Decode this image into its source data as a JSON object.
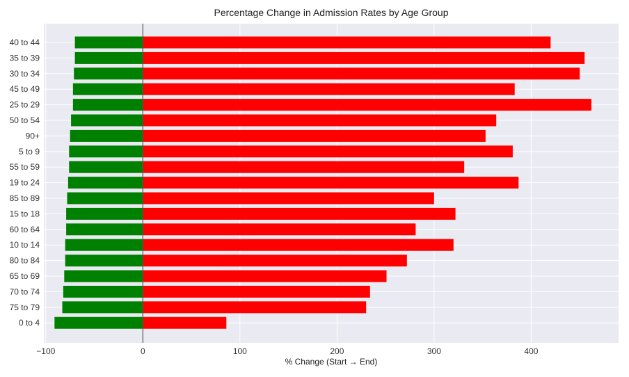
{
  "chart_data": {
    "type": "bar",
    "orientation": "horizontal",
    "title": "Percentage Change in Admission Rates by Age Group",
    "xlabel": "% Change (Start → End)",
    "ylabel": "",
    "xlim": [
      -102,
      490
    ],
    "x_ticks": [
      -100,
      0,
      100,
      200,
      300,
      400
    ],
    "x_tick_labels": [
      "−100",
      "0",
      "100",
      "200",
      "300",
      "400"
    ],
    "grid": true,
    "legend": "none",
    "colors": {
      "negative": "#008000",
      "positive": "#ff0000",
      "background": "#eaeaf2",
      "grid": "#ffffff",
      "zero_line": "#555555"
    },
    "categories": [
      "40 to 44",
      "35 to 39",
      "30 to 34",
      "45 to 49",
      "25 to 29",
      "50 to 54",
      "90+",
      "5 to 9",
      "55 to 59",
      "19 to 24",
      "85 to 89",
      "15 to 18",
      "60 to 64",
      "10 to 14",
      "80 to 84",
      "65 to 69",
      "70 to 74",
      "75 to 79",
      "0 to 4"
    ],
    "series": [
      {
        "values": [
          -70,
          -70,
          -71,
          -72,
          -72,
          -74,
          -75,
          -76,
          -76,
          -77,
          -78,
          -79,
          -79,
          -80,
          -80,
          -81,
          -82,
          -83,
          -91
        ]
      },
      {
        "values": [
          420,
          455,
          450,
          383,
          462,
          364,
          353,
          381,
          331,
          387,
          300,
          322,
          281,
          320,
          272,
          251,
          234,
          230,
          86
        ]
      }
    ]
  }
}
